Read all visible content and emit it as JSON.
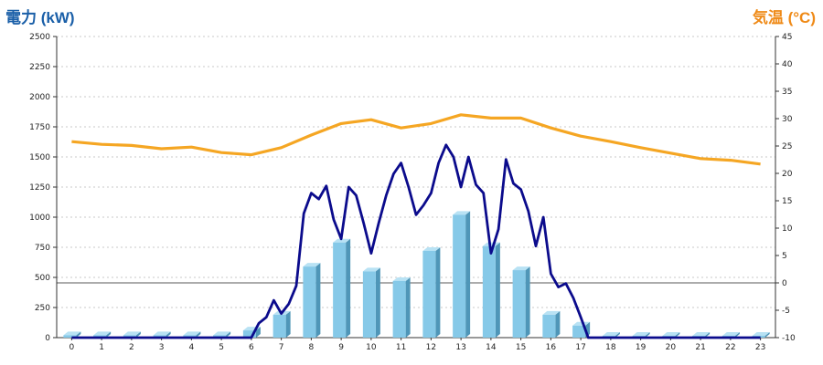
{
  "colors": {
    "power_title": "#1a5fa8",
    "temp_title": "#ef8a17",
    "temp_line": "#f5a623",
    "power_line": "#0b0b8c",
    "bar_front": "#86c9e8",
    "bar_side": "#4f96b8",
    "bar_top": "#b8e2f4",
    "grid": "#c8c8c8"
  },
  "chart_data": {
    "type": "bar+line",
    "left_title": "電力 (kW)",
    "right_title": "気温 (°C)",
    "grid": true,
    "y_left": {
      "min": 0,
      "max": 2500,
      "ticks": [
        "0",
        "250",
        "500",
        "750",
        "1000",
        "1250",
        "1500",
        "1750",
        "2000",
        "2250",
        "2500"
      ]
    },
    "y_right": {
      "min": -10,
      "max": 45,
      "ticks": [
        "-10",
        "-5",
        "0",
        "5",
        "10",
        "15",
        "20",
        "25",
        "30",
        "35",
        "40",
        "45"
      ]
    },
    "x_ticks": [
      "0",
      "1",
      "2",
      "3",
      "4",
      "5",
      "6",
      "7",
      "8",
      "9",
      "10",
      "11",
      "12",
      "13",
      "14",
      "15",
      "16",
      "17",
      "18",
      "19",
      "20",
      "21",
      "22",
      "23"
    ],
    "hourly_power_bars": [
      20,
      20,
      20,
      20,
      20,
      20,
      60,
      190,
      590,
      790,
      550,
      470,
      720,
      1020,
      760,
      560,
      190,
      100,
      15,
      15,
      15,
      15,
      15,
      15
    ],
    "temperature": {
      "x": [
        0,
        1,
        2,
        3,
        4,
        5,
        6,
        7,
        8,
        9,
        10,
        11,
        12,
        13,
        14,
        15,
        16,
        17,
        18,
        19,
        20,
        21,
        22,
        23
      ],
      "values": [
        25.8,
        25.3,
        25.1,
        24.5,
        24.8,
        23.8,
        23.4,
        24.7,
        27,
        29.1,
        29.8,
        28.3,
        29.1,
        30.7,
        30.1,
        30.1,
        28.3,
        26.8,
        25.8,
        24.7,
        23.7,
        22.7,
        22.4,
        21.7
      ]
    },
    "power_line": {
      "x": [
        0,
        1,
        2,
        3,
        4,
        5,
        6,
        6.25,
        6.5,
        6.75,
        7,
        7.25,
        7.5,
        7.75,
        8,
        8.25,
        8.5,
        8.75,
        9,
        9.25,
        9.5,
        9.75,
        10,
        10.25,
        10.5,
        10.75,
        11,
        11.25,
        11.5,
        11.75,
        12,
        12.25,
        12.5,
        12.75,
        13,
        13.25,
        13.5,
        13.75,
        14,
        14.25,
        14.5,
        14.75,
        15,
        15.25,
        15.5,
        15.75,
        16,
        16.25,
        16.5,
        16.75,
        17,
        17.25,
        17.5,
        18,
        19,
        20,
        21,
        22,
        23
      ],
      "values": [
        0,
        0,
        0,
        0,
        0,
        0,
        0,
        120,
        170,
        310,
        200,
        280,
        430,
        1030,
        1200,
        1150,
        1260,
        980,
        820,
        1250,
        1180,
        950,
        700,
        950,
        1180,
        1360,
        1450,
        1250,
        1020,
        1100,
        1200,
        1450,
        1600,
        1500,
        1250,
        1500,
        1270,
        1200,
        700,
        900,
        1480,
        1280,
        1230,
        1050,
        760,
        1000,
        530,
        420,
        450,
        330,
        170,
        0,
        0,
        0,
        0,
        0,
        0,
        0,
        0
      ]
    }
  }
}
